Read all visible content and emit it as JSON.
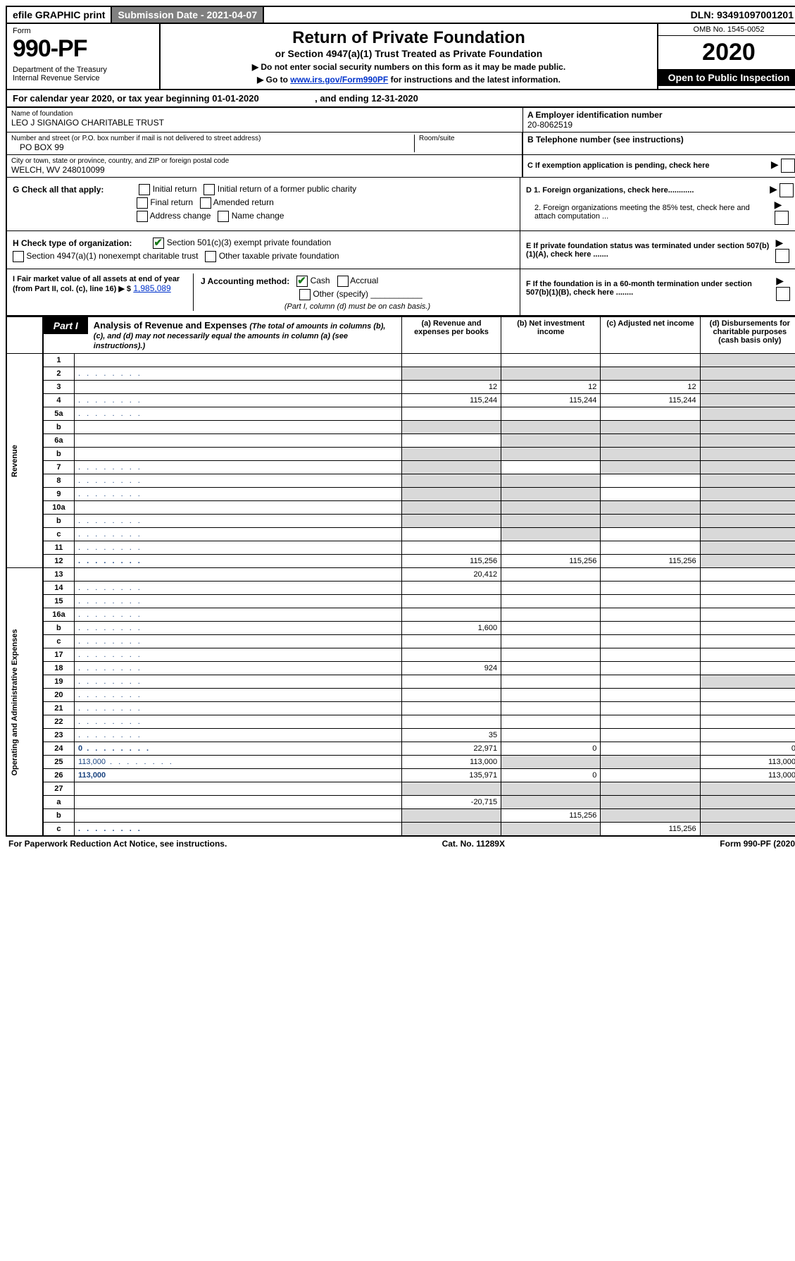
{
  "topbar": {
    "efile": "efile GRAPHIC print",
    "subdate": "Submission Date - 2021-04-07",
    "dln": "DLN: 93491097001201"
  },
  "header": {
    "form_label": "Form",
    "form_no": "990-PF",
    "dept": "Department of the Treasury\nInternal Revenue Service",
    "title": "Return of Private Foundation",
    "subtitle": "or Section 4947(a)(1) Trust Treated as Private Foundation",
    "instr1": "▶ Do not enter social security numbers on this form as it may be made public.",
    "instr2_pre": "▶ Go to ",
    "instr2_link": "www.irs.gov/Form990PF",
    "instr2_post": " for instructions and the latest information.",
    "omb": "OMB No. 1545-0052",
    "year": "2020",
    "open": "Open to Public Inspection"
  },
  "calyear": "For calendar year 2020, or tax year beginning 01-01-2020                      , and ending 12-31-2020",
  "id": {
    "name_label": "Name of foundation",
    "name": "LEO J SIGNAIGO CHARITABLE TRUST",
    "ein_label": "A Employer identification number",
    "ein": "20-8062519",
    "addr_label": "Number and street (or P.O. box number if mail is not delivered to street address)",
    "addr": "PO BOX 99",
    "room_label": "Room/suite",
    "tel_label": "B Telephone number (see instructions)",
    "city_label": "City or town, state or province, country, and ZIP or foreign postal code",
    "city": "WELCH, WV  248010099",
    "pending": "C If exemption application is pending, check here"
  },
  "checks": {
    "g_label": "G Check all that apply:",
    "g_items": [
      "Initial return",
      "Initial return of a former public charity",
      "Final return",
      "Amended return",
      "Address change",
      "Name change"
    ],
    "h_label": "H Check type of organization:",
    "h_items": [
      "Section 501(c)(3) exempt private foundation",
      "Section 4947(a)(1) nonexempt charitable trust",
      "Other taxable private foundation"
    ],
    "i_label": "I Fair market value of all assets at end of year (from Part II, col. (c), line 16) ▶ $",
    "i_val": "1,985,089",
    "j_label": "J Accounting method:",
    "j_items": [
      "Cash",
      "Accrual",
      "Other (specify)"
    ],
    "j_note": "(Part I, column (d) must be on cash basis.)",
    "d1": "D 1. Foreign organizations, check here............",
    "d2": "2. Foreign organizations meeting the 85% test, check here and attach computation ...",
    "e": "E If private foundation status was terminated under section 507(b)(1)(A), check here .......",
    "f": "F If the foundation is in a 60-month termination under section 507(b)(1)(B), check here ........"
  },
  "part1": {
    "label": "Part I",
    "title": "Analysis of Revenue and Expenses",
    "subtitle": "(The total of amounts in columns (b), (c), and (d) may not necessarily equal the amounts in column (a) (see instructions).)",
    "cols": [
      "(a)   Revenue and expenses per books",
      "(b)   Net investment income",
      "(c)   Adjusted net income",
      "(d)   Disbursements for charitable purposes (cash basis only)"
    ],
    "side_rev": "Revenue",
    "side_exp": "Operating and Administrative Expenses"
  },
  "rows": [
    {
      "n": "1",
      "d": "",
      "a": "",
      "b": "",
      "c": "",
      "shade_d": true
    },
    {
      "n": "2",
      "d": "",
      "a": "",
      "b": "",
      "c": "",
      "shade_all": true,
      "dots": true
    },
    {
      "n": "3",
      "d": "",
      "a": "12",
      "b": "12",
      "c": "12",
      "shade_d": true
    },
    {
      "n": "4",
      "d": "",
      "a": "115,244",
      "b": "115,244",
      "c": "115,244",
      "shade_d": true,
      "dots": true
    },
    {
      "n": "5a",
      "d": "",
      "a": "",
      "b": "",
      "c": "",
      "shade_d": true,
      "dots": true
    },
    {
      "n": "b",
      "d": "",
      "a": "",
      "b": "",
      "c": "",
      "shade_all": true
    },
    {
      "n": "6a",
      "d": "",
      "a": "",
      "b": "",
      "c": "",
      "shade_bcd": true
    },
    {
      "n": "b",
      "d": "",
      "a": "",
      "b": "",
      "c": "",
      "shade_all": true
    },
    {
      "n": "7",
      "d": "",
      "a": "",
      "b": "",
      "c": "",
      "shade_acd": true,
      "dots": true
    },
    {
      "n": "8",
      "d": "",
      "a": "",
      "b": "",
      "c": "",
      "shade_abd": true,
      "dots": true
    },
    {
      "n": "9",
      "d": "",
      "a": "",
      "b": "",
      "c": "",
      "shade_abd": true,
      "dots": true
    },
    {
      "n": "10a",
      "d": "",
      "a": "",
      "b": "",
      "c": "",
      "shade_all": true
    },
    {
      "n": "b",
      "d": "",
      "a": "",
      "b": "",
      "c": "",
      "shade_all": true,
      "dots": true
    },
    {
      "n": "c",
      "d": "",
      "a": "",
      "b": "",
      "c": "",
      "shade_bd": true,
      "dots": true
    },
    {
      "n": "11",
      "d": "",
      "a": "",
      "b": "",
      "c": "",
      "shade_d": true,
      "dots": true
    },
    {
      "n": "12",
      "d": "",
      "a": "115,256",
      "b": "115,256",
      "c": "115,256",
      "shade_d": true,
      "bold": true,
      "dots": true
    },
    {
      "n": "13",
      "d": "",
      "a": "20,412",
      "b": "",
      "c": ""
    },
    {
      "n": "14",
      "d": "",
      "a": "",
      "b": "",
      "c": "",
      "dots": true
    },
    {
      "n": "15",
      "d": "",
      "a": "",
      "b": "",
      "c": "",
      "dots": true
    },
    {
      "n": "16a",
      "d": "",
      "a": "",
      "b": "",
      "c": "",
      "dots": true
    },
    {
      "n": "b",
      "d": "",
      "a": "1,600",
      "b": "",
      "c": "",
      "dots": true
    },
    {
      "n": "c",
      "d": "",
      "a": "",
      "b": "",
      "c": "",
      "dots": true
    },
    {
      "n": "17",
      "d": "",
      "a": "",
      "b": "",
      "c": "",
      "dots": true
    },
    {
      "n": "18",
      "d": "",
      "a": "924",
      "b": "",
      "c": "",
      "dots": true
    },
    {
      "n": "19",
      "d": "",
      "a": "",
      "b": "",
      "c": "",
      "shade_d": true,
      "dots": true
    },
    {
      "n": "20",
      "d": "",
      "a": "",
      "b": "",
      "c": "",
      "dots": true
    },
    {
      "n": "21",
      "d": "",
      "a": "",
      "b": "",
      "c": "",
      "dots": true
    },
    {
      "n": "22",
      "d": "",
      "a": "",
      "b": "",
      "c": "",
      "dots": true
    },
    {
      "n": "23",
      "d": "",
      "a": "35",
      "b": "",
      "c": "",
      "dots": true
    },
    {
      "n": "24",
      "d": "0",
      "a": "22,971",
      "b": "0",
      "c": "",
      "bold": true,
      "dots": true
    },
    {
      "n": "25",
      "d": "113,000",
      "a": "113,000",
      "b": "",
      "c": "",
      "shade_bc": true,
      "dots": true
    },
    {
      "n": "26",
      "d": "113,000",
      "a": "135,971",
      "b": "0",
      "c": "",
      "bold": true
    },
    {
      "n": "27",
      "d": "",
      "a": "",
      "b": "",
      "c": "",
      "shade_all": true
    },
    {
      "n": "a",
      "d": "",
      "a": "-20,715",
      "b": "",
      "c": "",
      "shade_bcd": true,
      "bold": true
    },
    {
      "n": "b",
      "d": "",
      "a": "",
      "b": "115,256",
      "c": "",
      "shade_acd": true,
      "bold": true
    },
    {
      "n": "c",
      "d": "",
      "a": "",
      "b": "",
      "c": "115,256",
      "shade_abd": true,
      "bold": true,
      "dots": true
    }
  ],
  "footer": {
    "left": "For Paperwork Reduction Act Notice, see instructions.",
    "mid": "Cat. No. 11289X",
    "right": "Form 990-PF (2020)"
  }
}
